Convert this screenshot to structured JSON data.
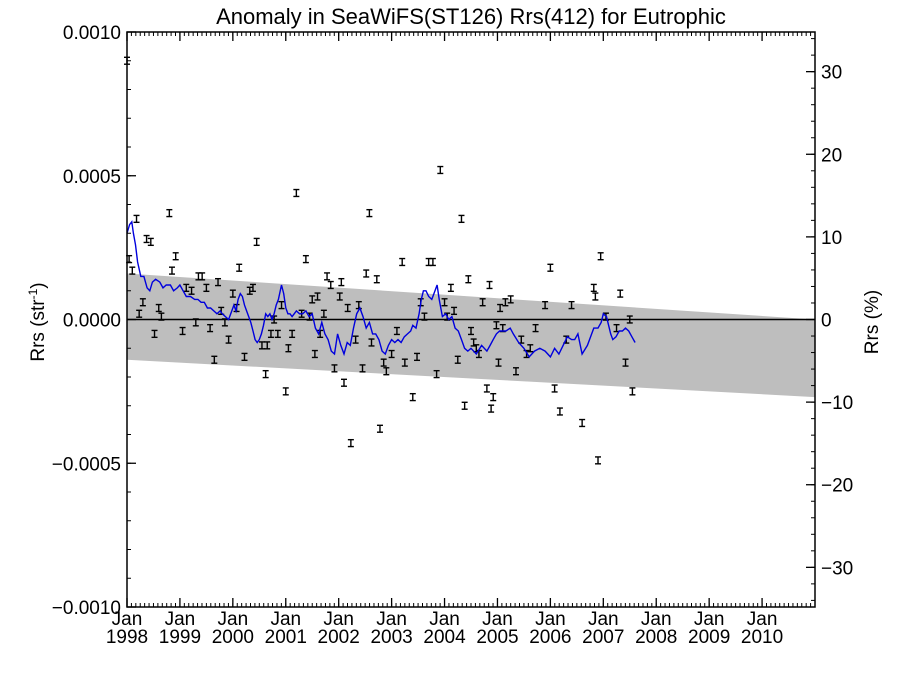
{
  "chart_data": {
    "type": "scatter",
    "title": "Anomaly in SeaWiFS(ST126) Rrs(412) for Eutrophic",
    "ylabel_main": "Rrs (str",
    "ylabel_sup": "-1",
    "ylabel_close": ")",
    "ylabel_right": "Rrs (%)",
    "x_month_label": "Jan",
    "x_years": [
      "1998",
      "1999",
      "2000",
      "2001",
      "2002",
      "2003",
      "2004",
      "2005",
      "2006",
      "2007",
      "2008",
      "2009",
      "2010"
    ],
    "xlim": [
      1998.0,
      2011.0
    ],
    "ylim": [
      -0.001,
      0.001
    ],
    "y_ticks": [
      0.001,
      0.0005,
      0.0,
      -0.0005,
      -0.001
    ],
    "y_tick_labels": [
      "0.0010",
      "0.0005",
      "0.0000",
      "−0.0005",
      "−0.0010"
    ],
    "y2lim": [
      -34.8,
      34.8
    ],
    "y2_ticks": [
      30,
      20,
      10,
      0,
      -10,
      -20,
      -30
    ],
    "y2_tick_labels": [
      "30",
      "20",
      "10",
      "0",
      "−10",
      "−20",
      "−30"
    ],
    "error_bar_halfwidth": 1.2e-05,
    "points": [
      [
        1998.0,
        0.0009
      ],
      [
        1998.04,
        0.00021
      ],
      [
        1998.1,
        0.00017
      ],
      [
        1998.18,
        0.00035
      ],
      [
        1998.23,
        2e-05
      ],
      [
        1998.3,
        6e-05
      ],
      [
        1998.37,
        0.00028
      ],
      [
        1998.45,
        0.00027
      ],
      [
        1998.52,
        -5e-05
      ],
      [
        1998.6,
        4e-05
      ],
      [
        1998.65,
        1e-05
      ],
      [
        1998.8,
        0.00037
      ],
      [
        1998.85,
        0.00017
      ],
      [
        1998.92,
        0.00022
      ],
      [
        1999.05,
        -4e-05
      ],
      [
        1999.12,
        0.00011
      ],
      [
        1999.22,
        0.0001
      ],
      [
        1999.3,
        -1e-05
      ],
      [
        1999.35,
        0.00015
      ],
      [
        1999.42,
        0.00015
      ],
      [
        1999.5,
        0.00011
      ],
      [
        1999.57,
        -3e-05
      ],
      [
        1999.65,
        -0.00014
      ],
      [
        1999.72,
        0.00013
      ],
      [
        1999.78,
        3e-05
      ],
      [
        1999.85,
        -1e-05
      ],
      [
        1999.92,
        -7e-05
      ],
      [
        2000.0,
        9e-05
      ],
      [
        2000.07,
        4e-05
      ],
      [
        2000.12,
        0.00018
      ],
      [
        2000.22,
        -0.00013
      ],
      [
        2000.32,
        0.0001
      ],
      [
        2000.38,
        0.00011
      ],
      [
        2000.45,
        0.00027
      ],
      [
        2000.55,
        -9e-05
      ],
      [
        2000.62,
        -0.00019
      ],
      [
        2000.65,
        -9e-05
      ],
      [
        2000.72,
        -5e-05
      ],
      [
        2000.78,
        0.0
      ],
      [
        2000.85,
        -5e-05
      ],
      [
        2000.92,
        5e-05
      ],
      [
        2001.0,
        -0.00025
      ],
      [
        2001.05,
        -0.0001
      ],
      [
        2001.12,
        -5e-05
      ],
      [
        2001.2,
        0.00044
      ],
      [
        2001.3,
        2e-05
      ],
      [
        2001.38,
        0.00021
      ],
      [
        2001.45,
        1e-05
      ],
      [
        2001.5,
        7e-05
      ],
      [
        2001.55,
        -0.00012
      ],
      [
        2001.6,
        8e-05
      ],
      [
        2001.65,
        -5e-05
      ],
      [
        2001.72,
        2e-05
      ],
      [
        2001.78,
        0.00015
      ],
      [
        2001.85,
        0.00012
      ],
      [
        2001.92,
        -0.00017
      ],
      [
        2002.02,
        8e-05
      ],
      [
        2002.05,
        0.00013
      ],
      [
        2002.1,
        -0.00022
      ],
      [
        2002.17,
        4e-05
      ],
      [
        2002.23,
        -0.00043
      ],
      [
        2002.32,
        -7e-05
      ],
      [
        2002.38,
        5e-05
      ],
      [
        2002.45,
        -0.00017
      ],
      [
        2002.52,
        0.00016
      ],
      [
        2002.58,
        0.00037
      ],
      [
        2002.62,
        -8e-05
      ],
      [
        2002.72,
        0.00014
      ],
      [
        2002.78,
        -0.00038
      ],
      [
        2002.85,
        -0.00015
      ],
      [
        2002.9,
        -0.00018
      ],
      [
        2003.0,
        -0.00012
      ],
      [
        2003.1,
        -4e-05
      ],
      [
        2003.2,
        0.0002
      ],
      [
        2003.25,
        -0.00015
      ],
      [
        2003.4,
        -0.00027
      ],
      [
        2003.48,
        -0.00013
      ],
      [
        2003.55,
        6e-05
      ],
      [
        2003.62,
        1e-05
      ],
      [
        2003.7,
        0.0002
      ],
      [
        2003.78,
        0.0002
      ],
      [
        2003.85,
        -0.00019
      ],
      [
        2003.92,
        0.00052
      ],
      [
        2004.0,
        6e-05
      ],
      [
        2004.05,
        1e-05
      ],
      [
        2004.12,
        0.00011
      ],
      [
        2004.18,
        3e-05
      ],
      [
        2004.25,
        -0.00014
      ],
      [
        2004.32,
        0.00035
      ],
      [
        2004.38,
        -0.0003
      ],
      [
        2004.45,
        0.00014
      ],
      [
        2004.5,
        -4e-05
      ],
      [
        2004.55,
        -8e-05
      ],
      [
        2004.6,
        -0.0001
      ],
      [
        2004.65,
        -0.00012
      ],
      [
        2004.72,
        6e-05
      ],
      [
        2004.8,
        -0.00024
      ],
      [
        2004.85,
        0.00012
      ],
      [
        2004.88,
        -0.00031
      ],
      [
        2004.92,
        -0.00027
      ],
      [
        2004.98,
        -2e-05
      ],
      [
        2005.02,
        -0.00015
      ],
      [
        2005.05,
        4e-05
      ],
      [
        2005.1,
        -3e-05
      ],
      [
        2005.15,
        6e-05
      ],
      [
        2005.25,
        7e-05
      ],
      [
        2005.35,
        -0.00018
      ],
      [
        2005.45,
        -7e-05
      ],
      [
        2005.55,
        -0.00012
      ],
      [
        2005.62,
        -0.0001
      ],
      [
        2005.72,
        -3e-05
      ],
      [
        2005.9,
        5e-05
      ],
      [
        2006.0,
        0.00018
      ],
      [
        2006.08,
        -0.00024
      ],
      [
        2006.18,
        -0.00032
      ],
      [
        2006.3,
        -7e-05
      ],
      [
        2006.4,
        5e-05
      ],
      [
        2006.6,
        -0.00036
      ],
      [
        2006.82,
        0.00011
      ],
      [
        2006.85,
        8e-05
      ],
      [
        2006.9,
        -0.00049
      ],
      [
        2006.95,
        0.00022
      ],
      [
        2007.05,
        1e-05
      ],
      [
        2007.25,
        -3e-05
      ],
      [
        2007.32,
        9e-05
      ],
      [
        2007.42,
        -0.00015
      ],
      [
        2007.5,
        0.0
      ],
      [
        2007.55,
        -0.00025
      ]
    ],
    "running_mean": [
      [
        1998.0,
        0.0003
      ],
      [
        1998.05,
        0.00033
      ],
      [
        1998.09,
        0.00034
      ],
      [
        1998.12,
        0.0003
      ],
      [
        1998.16,
        0.00026
      ],
      [
        1998.2,
        0.0002
      ],
      [
        1998.26,
        0.00015
      ],
      [
        1998.32,
        0.00015
      ],
      [
        1998.38,
        0.00011
      ],
      [
        1998.43,
        0.0001
      ],
      [
        1998.48,
        0.00013
      ],
      [
        1998.54,
        0.00014
      ],
      [
        1998.62,
        0.00013
      ],
      [
        1998.68,
        0.00011
      ],
      [
        1998.74,
        0.00012
      ],
      [
        1998.82,
        0.00012
      ],
      [
        1998.88,
        0.0001
      ],
      [
        1998.95,
        0.00011
      ],
      [
        1999.0,
        0.00012
      ],
      [
        1999.06,
        0.0001
      ],
      [
        1999.12,
        8e-05
      ],
      [
        1999.2,
        8e-05
      ],
      [
        1999.28,
        7e-05
      ],
      [
        1999.34,
        7e-05
      ],
      [
        1999.4,
        6e-05
      ],
      [
        1999.46,
        6e-05
      ],
      [
        1999.52,
        4e-05
      ],
      [
        1999.58,
        4e-05
      ],
      [
        1999.64,
        3e-05
      ],
      [
        1999.7,
        2e-05
      ],
      [
        1999.76,
        3e-05
      ],
      [
        1999.8,
        2e-05
      ],
      [
        1999.86,
        1e-05
      ],
      [
        1999.92,
        0.0
      ],
      [
        1999.98,
        3e-05
      ],
      [
        2000.02,
        5e-05
      ],
      [
        2000.06,
        3e-05
      ],
      [
        2000.1,
        7e-05
      ],
      [
        2000.14,
        9e-05
      ],
      [
        2000.18,
        8e-05
      ],
      [
        2000.22,
        5e-05
      ],
      [
        2000.26,
        3e-05
      ],
      [
        2000.3,
        1e-05
      ],
      [
        2000.34,
        -1e-05
      ],
      [
        2000.38,
        -4e-05
      ],
      [
        2000.42,
        -7e-05
      ],
      [
        2000.46,
        -8e-05
      ],
      [
        2000.5,
        -7e-05
      ],
      [
        2000.54,
        -5e-05
      ],
      [
        2000.58,
        -2e-05
      ],
      [
        2000.62,
        2e-05
      ],
      [
        2000.66,
        1e-05
      ],
      [
        2000.7,
        2e-05
      ],
      [
        2000.74,
        0.0
      ],
      [
        2000.78,
        2e-05
      ],
      [
        2000.82,
        5e-05
      ],
      [
        2000.86,
        7e-05
      ],
      [
        2000.92,
        0.00012
      ],
      [
        2000.96,
        9e-05
      ],
      [
        2001.0,
        4e-05
      ],
      [
        2001.04,
        2e-05
      ],
      [
        2001.08,
        2e-05
      ],
      [
        2001.12,
        1e-05
      ],
      [
        2001.16,
        2e-05
      ],
      [
        2001.2,
        3e-05
      ],
      [
        2001.26,
        2e-05
      ],
      [
        2001.32,
        2e-05
      ],
      [
        2001.38,
        3e-05
      ],
      [
        2001.44,
        1e-05
      ],
      [
        2001.5,
        2e-05
      ],
      [
        2001.56,
        -3e-05
      ],
      [
        2001.62,
        -5e-05
      ],
      [
        2001.68,
        -1e-05
      ],
      [
        2001.74,
        -5e-05
      ],
      [
        2001.8,
        -7e-05
      ],
      [
        2001.86,
        -0.00011
      ],
      [
        2001.92,
        -0.00012
      ],
      [
        2001.98,
        -5e-05
      ],
      [
        2002.04,
        -9e-05
      ],
      [
        2002.1,
        -0.00012
      ],
      [
        2002.16,
        -8e-05
      ],
      [
        2002.22,
        -9e-05
      ],
      [
        2002.28,
        -3e-05
      ],
      [
        2002.34,
        2e-05
      ],
      [
        2002.4,
        4e-05
      ],
      [
        2002.46,
        1e-05
      ],
      [
        2002.52,
        -3e-05
      ],
      [
        2002.58,
        -1e-05
      ],
      [
        2002.64,
        -5e-05
      ],
      [
        2002.7,
        -5e-05
      ],
      [
        2002.76,
        -7e-05
      ],
      [
        2002.82,
        -0.00011
      ],
      [
        2002.88,
        -0.00012
      ],
      [
        2002.94,
        -9e-05
      ],
      [
        2003.0,
        -7e-05
      ],
      [
        2003.06,
        -8e-05
      ],
      [
        2003.12,
        -7e-05
      ],
      [
        2003.18,
        -8e-05
      ],
      [
        2003.24,
        -6e-05
      ],
      [
        2003.3,
        -5e-05
      ],
      [
        2003.36,
        -4e-05
      ],
      [
        2003.4,
        -2e-05
      ],
      [
        2003.46,
        -3e-05
      ],
      [
        2003.52,
        2e-05
      ],
      [
        2003.56,
        7e-05
      ],
      [
        2003.6,
        0.0001
      ],
      [
        2003.65,
        0.0001
      ],
      [
        2003.7,
        8e-05
      ],
      [
        2003.76,
        7e-05
      ],
      [
        2003.82,
        0.0001
      ],
      [
        2003.86,
        0.00012
      ],
      [
        2003.9,
        7e-05
      ],
      [
        2003.96,
        1e-05
      ],
      [
        2004.02,
        2e-05
      ],
      [
        2004.08,
        0.0
      ],
      [
        2004.14,
        1e-05
      ],
      [
        2004.2,
        -3e-05
      ],
      [
        2004.26,
        -4e-05
      ],
      [
        2004.32,
        -7e-05
      ],
      [
        2004.38,
        -0.0001
      ],
      [
        2004.44,
        -0.00011
      ],
      [
        2004.5,
        -0.0001
      ],
      [
        2004.6,
        -0.00012
      ],
      [
        2004.7,
        -9e-05
      ],
      [
        2004.8,
        -0.00011
      ],
      [
        2004.86,
        -9e-05
      ],
      [
        2004.92,
        -7e-05
      ],
      [
        2004.98,
        -5e-05
      ],
      [
        2005.04,
        -4e-05
      ],
      [
        2005.1,
        -4e-05
      ],
      [
        2005.16,
        -4e-05
      ],
      [
        2005.24,
        -3e-05
      ],
      [
        2005.3,
        -5e-05
      ],
      [
        2005.4,
        -8e-05
      ],
      [
        2005.5,
        -0.0001
      ],
      [
        2005.6,
        -0.00013
      ],
      [
        2005.7,
        -0.00011
      ],
      [
        2005.8,
        -0.0001
      ],
      [
        2005.9,
        -0.00011
      ],
      [
        2006.0,
        -0.00013
      ],
      [
        2006.08,
        -0.0001
      ],
      [
        2006.16,
        -0.00012
      ],
      [
        2006.24,
        -9e-05
      ],
      [
        2006.32,
        -6e-05
      ],
      [
        2006.4,
        -7e-05
      ],
      [
        2006.46,
        -7e-05
      ],
      [
        2006.52,
        -5e-05
      ],
      [
        2006.6,
        -0.00012
      ],
      [
        2006.7,
        -9e-05
      ],
      [
        2006.76,
        -6e-05
      ],
      [
        2006.82,
        -3e-05
      ],
      [
        2006.9,
        -3e-05
      ],
      [
        2006.96,
        -1e-05
      ],
      [
        2007.0,
        2e-05
      ],
      [
        2007.06,
        1e-05
      ],
      [
        2007.1,
        -2e-05
      ],
      [
        2007.14,
        -5e-05
      ],
      [
        2007.18,
        -7e-05
      ],
      [
        2007.24,
        -6e-05
      ],
      [
        2007.3,
        -4e-05
      ],
      [
        2007.36,
        -4e-05
      ],
      [
        2007.42,
        -3e-05
      ],
      [
        2007.48,
        -4e-05
      ],
      [
        2007.54,
        -6e-05
      ],
      [
        2007.6,
        -8e-05
      ]
    ],
    "trend_band": {
      "upper": [
        [
          1998.0,
          0.00016
        ],
        [
          2011.0,
          0.0
        ]
      ],
      "lower": [
        [
          1998.0,
          -0.00014
        ],
        [
          2011.0,
          -0.00027
        ]
      ]
    },
    "colors": {
      "running_mean": "#0000dd",
      "band": "#bebebe",
      "points": "#000000",
      "zero_line": "#000000"
    },
    "grid": false,
    "legend": "none"
  }
}
